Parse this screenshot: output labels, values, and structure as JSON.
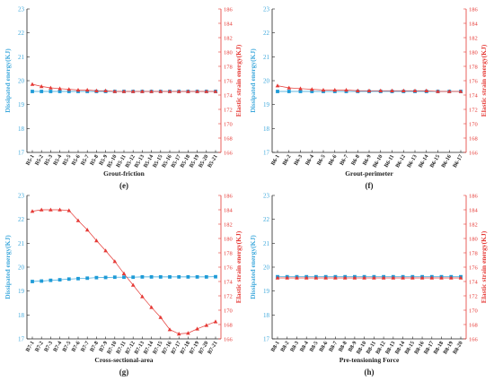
{
  "colors": {
    "dissipated": "#1e9bd7",
    "elastic": "#e53935",
    "axis": "#222222"
  },
  "chart_data": [
    {
      "type": "line",
      "panel_label": "(e)",
      "xlabel": "Grout-friction",
      "ylabel_left": "Dissipated energy(KJ)",
      "ylabel_right": "Elastic strain energy(KJ)",
      "ylim_left": [
        17,
        23
      ],
      "yticks_left": [
        17,
        18,
        19,
        20,
        21,
        22,
        23
      ],
      "ylim_right": [
        166,
        186
      ],
      "yticks_right": [
        166,
        168,
        170,
        172,
        174,
        176,
        178,
        180,
        182,
        184,
        186
      ],
      "categories": [
        "B5-1",
        "B5-2",
        "B5-3",
        "B5-4",
        "B5-5",
        "B5-6",
        "B5-7",
        "B5-8",
        "B5-9",
        "B5-10",
        "B5-11",
        "B5-12",
        "B5-13",
        "B5-14",
        "B5-15",
        "B5-16",
        "B5-17",
        "B5-18",
        "B5-19",
        "B5-20",
        "B5-21"
      ],
      "series": [
        {
          "axis": "left",
          "marker": "square",
          "values": [
            19.55,
            19.55,
            19.55,
            19.55,
            19.55,
            19.55,
            19.55,
            19.55,
            19.55,
            19.55,
            19.55,
            19.55,
            19.55,
            19.55,
            19.55,
            19.55,
            19.55,
            19.55,
            19.55,
            19.55,
            19.55
          ]
        },
        {
          "axis": "right",
          "marker": "triangle",
          "values": [
            175.5,
            175.2,
            175.0,
            174.9,
            174.8,
            174.7,
            174.7,
            174.6,
            174.6,
            174.5,
            174.5,
            174.5,
            174.5,
            174.5,
            174.5,
            174.5,
            174.5,
            174.5,
            174.5,
            174.5,
            174.5
          ]
        }
      ]
    },
    {
      "type": "line",
      "panel_label": "(f)",
      "xlabel": "Grout-perimeter",
      "ylabel_left": "Dissipated energy(KJ)",
      "ylabel_right": "Elastic strain energy(KJ)",
      "ylim_left": [
        17,
        23
      ],
      "yticks_left": [
        17,
        18,
        19,
        20,
        21,
        22,
        23
      ],
      "ylim_right": [
        166,
        186
      ],
      "yticks_right": [
        166,
        168,
        170,
        172,
        174,
        176,
        178,
        180,
        182,
        184,
        186
      ],
      "categories": [
        "B6-1",
        "B6-2",
        "B6-3",
        "B6-4",
        "B6-5",
        "B6-6",
        "B6-7",
        "B6-8",
        "B6-9",
        "B6-10",
        "B6-11",
        "B6-12",
        "B6-13",
        "B6-14",
        "B6-15",
        "B6-16",
        "B6-17"
      ],
      "series": [
        {
          "axis": "left",
          "marker": "square",
          "values": [
            19.55,
            19.55,
            19.55,
            19.55,
            19.55,
            19.55,
            19.55,
            19.55,
            19.55,
            19.55,
            19.55,
            19.55,
            19.55,
            19.55,
            19.55,
            19.55,
            19.55
          ]
        },
        {
          "axis": "right",
          "marker": "triangle",
          "values": [
            175.3,
            175.0,
            174.9,
            174.8,
            174.7,
            174.7,
            174.7,
            174.6,
            174.6,
            174.6,
            174.6,
            174.6,
            174.6,
            174.6,
            174.5,
            174.5,
            174.5
          ]
        }
      ]
    },
    {
      "type": "line",
      "panel_label": "(g)",
      "xlabel": "Cross-sectional-area",
      "ylabel_left": "Dissipated energy(KJ)",
      "ylabel_right": "Elastic strain energy(KJ)",
      "ylim_left": [
        17,
        23
      ],
      "yticks_left": [
        17,
        18,
        19,
        20,
        21,
        22,
        23
      ],
      "ylim_right": [
        166,
        186
      ],
      "yticks_right": [
        166,
        168,
        170,
        172,
        174,
        176,
        178,
        180,
        182,
        184,
        186
      ],
      "categories": [
        "B7-1",
        "B7-2",
        "B7-3",
        "B7-4",
        "B7-5",
        "B7-6",
        "B7-7",
        "B7-8",
        "B7-9",
        "B7-10",
        "B7-11",
        "B7-12",
        "B7-13",
        "B7-14",
        "B7-15",
        "B7-16",
        "B7-17",
        "B7-18",
        "B7-19",
        "B7-20",
        "B7-21"
      ],
      "series": [
        {
          "axis": "left",
          "marker": "square",
          "values": [
            19.4,
            19.42,
            19.45,
            19.47,
            19.5,
            19.52,
            19.54,
            19.56,
            19.57,
            19.58,
            19.58,
            19.58,
            19.59,
            19.59,
            19.59,
            19.59,
            19.59,
            19.59,
            19.59,
            19.59,
            19.6
          ]
        },
        {
          "axis": "right",
          "marker": "triangle",
          "values": [
            183.8,
            184.0,
            184.0,
            184.0,
            183.9,
            182.5,
            181.2,
            179.7,
            178.3,
            176.8,
            175.1,
            173.5,
            171.9,
            170.4,
            169.0,
            167.3,
            166.7,
            166.8,
            167.4,
            167.9,
            168.4
          ]
        }
      ]
    },
    {
      "type": "line",
      "panel_label": "(h)",
      "xlabel": "Pre-tensioning Force",
      "ylabel_left": "Dissipated energy(KJ)",
      "ylabel_right": "Elastic strain energy(KJ)",
      "ylim_left": [
        17,
        23
      ],
      "yticks_left": [
        17,
        18,
        19,
        20,
        21,
        22,
        23
      ],
      "ylim_right": [
        166,
        186
      ],
      "yticks_right": [
        166,
        168,
        170,
        172,
        174,
        176,
        178,
        180,
        182,
        184,
        186
      ],
      "categories": [
        "B8-1",
        "B8-2",
        "B8-3",
        "B8-4",
        "B8-5",
        "B8-6",
        "B8-7",
        "B8-8",
        "B8-9",
        "B8-10",
        "B8-11",
        "B8-12",
        "B8-13",
        "B8-14",
        "B8-15",
        "B8-16",
        "B8-17",
        "B8-18",
        "B8-19",
        "B8-20"
      ],
      "series": [
        {
          "axis": "left",
          "marker": "square",
          "values": [
            19.6,
            19.6,
            19.6,
            19.6,
            19.6,
            19.6,
            19.6,
            19.6,
            19.6,
            19.6,
            19.6,
            19.6,
            19.6,
            19.6,
            19.6,
            19.6,
            19.6,
            19.6,
            19.6,
            19.6
          ]
        },
        {
          "axis": "right",
          "marker": "triangle",
          "values": [
            174.5,
            174.5,
            174.5,
            174.5,
            174.5,
            174.5,
            174.5,
            174.5,
            174.5,
            174.5,
            174.5,
            174.5,
            174.5,
            174.5,
            174.5,
            174.5,
            174.5,
            174.5,
            174.5,
            174.5
          ]
        }
      ]
    }
  ]
}
